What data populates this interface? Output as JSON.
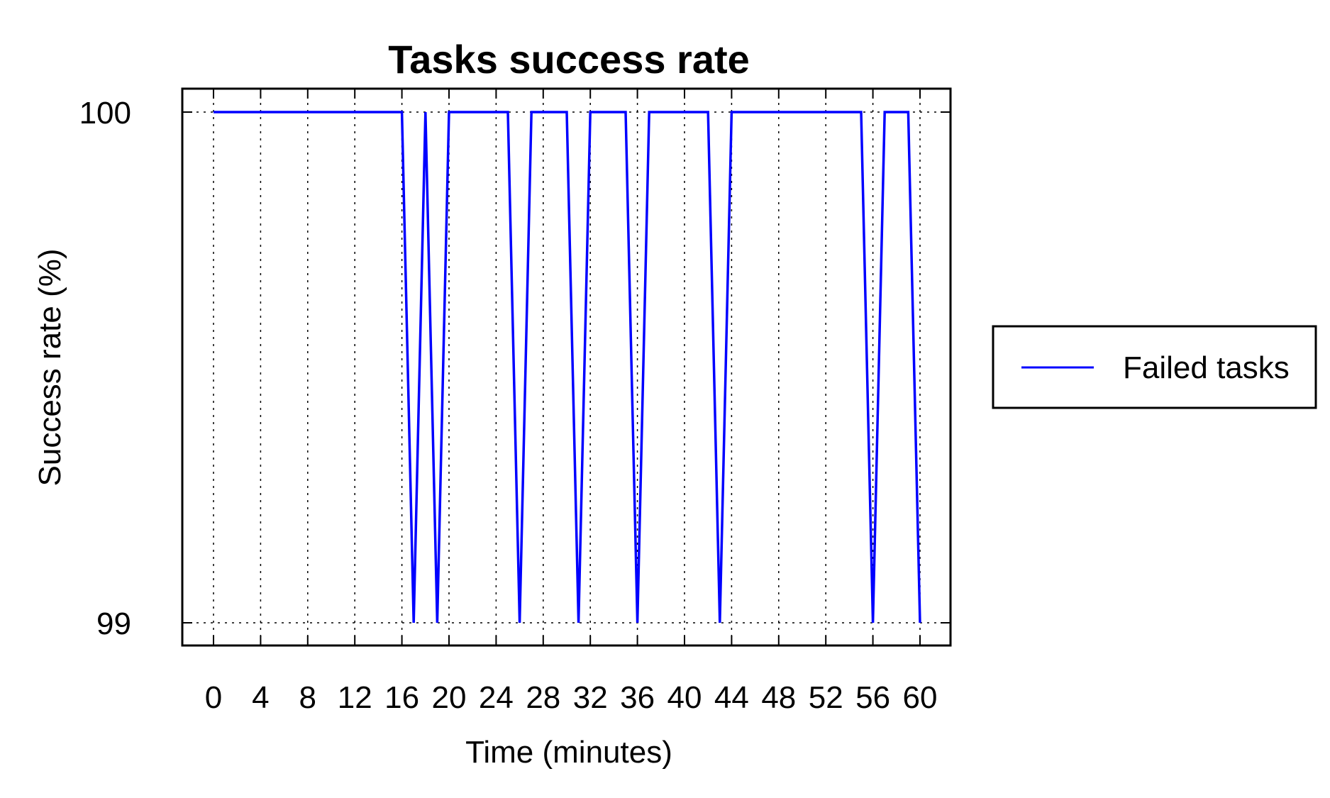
{
  "chart_data": {
    "type": "line",
    "title": "Tasks success rate",
    "xlabel": "Time (minutes)",
    "ylabel": "Success rate (%)",
    "xlim": [
      0,
      60
    ],
    "ylim": [
      99,
      100
    ],
    "xticks": [
      0,
      4,
      8,
      12,
      16,
      20,
      24,
      28,
      32,
      36,
      40,
      44,
      48,
      52,
      56,
      60
    ],
    "yticks": [
      99,
      100
    ],
    "grid": true,
    "legend_position": "right",
    "series": [
      {
        "name": "Failed tasks",
        "color": "#0000ff",
        "x": [
          0,
          1,
          2,
          3,
          4,
          5,
          6,
          7,
          8,
          9,
          10,
          11,
          12,
          13,
          14,
          15,
          16,
          17,
          18,
          19,
          20,
          21,
          22,
          23,
          24,
          25,
          26,
          27,
          28,
          29,
          30,
          31,
          32,
          33,
          34,
          35,
          36,
          37,
          38,
          39,
          40,
          41,
          42,
          43,
          44,
          45,
          46,
          47,
          48,
          49,
          50,
          51,
          52,
          53,
          54,
          55,
          56,
          57,
          58,
          59,
          60
        ],
        "y": [
          100,
          100,
          100,
          100,
          100,
          100,
          100,
          100,
          100,
          100,
          100,
          100,
          100,
          100,
          100,
          100,
          100,
          99,
          100,
          99,
          100,
          100,
          100,
          100,
          100,
          100,
          99,
          100,
          100,
          100,
          100,
          99,
          100,
          100,
          100,
          100,
          99,
          100,
          100,
          100,
          100,
          100,
          100,
          99,
          100,
          100,
          100,
          100,
          100,
          100,
          100,
          100,
          100,
          100,
          100,
          100,
          99,
          100,
          100,
          100,
          99
        ]
      }
    ]
  }
}
